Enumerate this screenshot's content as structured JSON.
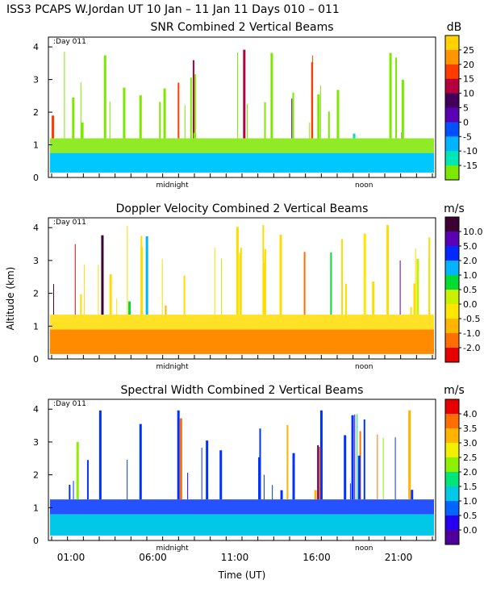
{
  "header": "ISS3 PCAPS W.Jordan UT  10 Jan – 11 Jan 11 Days 010 – 011",
  "shared": {
    "ylabel": "Altitude (km)",
    "xlabel": "Time (UT)",
    "time_ticks": [
      "01:00",
      "06:00",
      "11:00",
      "16:00",
      "21:00"
    ],
    "marker_midnight": "midnight",
    "marker_noon": "noon"
  },
  "chart_data": [
    {
      "type": "heatmap",
      "title": "SNR Combined 2 Vertical Beams",
      "day_label": ":Day 011",
      "units": "dB",
      "ylim": [
        0,
        4.3
      ],
      "yticks": [
        "0",
        "1",
        "2",
        "3",
        "4"
      ],
      "colorbar_labels": [
        "25",
        "20",
        "15",
        "10",
        "5",
        "0",
        "-5",
        "-10",
        "-15"
      ],
      "colorbar_colors": [
        "#ffd200",
        "#ff9600",
        "#ff3c00",
        "#b4003c",
        "#40005a",
        "#5a00b4",
        "#0050ff",
        "#00b4ff",
        "#00e6b4",
        "#7ce800"
      ],
      "background_color": "#7ce800",
      "layer_color": "#00c8ff",
      "layer_top_km": 0.75
    },
    {
      "type": "heatmap",
      "title": "Doppler Velocity Combined 2 Vertical Beams",
      "day_label": ":Day 011",
      "units": "m/s",
      "ylim": [
        0,
        4.3
      ],
      "yticks": [
        "0",
        "1",
        "2",
        "3",
        "4"
      ],
      "colorbar_labels": [
        "10.0",
        "5.0",
        "2.0",
        "1.0",
        "0.5",
        "0.0",
        "-0.5",
        "-1.0",
        "-2.0"
      ],
      "colorbar_colors": [
        "#3c0032",
        "#5a00b4",
        "#0028ff",
        "#00b4ff",
        "#00dc32",
        "#c8f000",
        "#ffe600",
        "#ffb400",
        "#ff6e00",
        "#e60000"
      ],
      "background_color": "#ffdc00",
      "layer_color": "#ff8c00",
      "layer_top_km": 0.9
    },
    {
      "type": "heatmap",
      "title": "Spectral Width Combined 2 Vertical Beams",
      "day_label": ":Day 011",
      "units": "m/s",
      "ylim": [
        0,
        4.3
      ],
      "yticks": [
        "0",
        "1",
        "2",
        "3",
        "4"
      ],
      "colorbar_labels": [
        "4.0",
        "3.5",
        "3.0",
        "2.5",
        "2.0",
        "1.5",
        "1.0",
        "0.5",
        "0.0"
      ],
      "colorbar_colors": [
        "#e60000",
        "#ff6e00",
        "#ffb400",
        "#f0f000",
        "#8cf000",
        "#00e678",
        "#00c8e6",
        "#0064ff",
        "#2800f0",
        "#50009a"
      ],
      "background_color": "#0032ff",
      "layer_color": "#00c8e6",
      "layer_top_km": 0.8
    }
  ]
}
